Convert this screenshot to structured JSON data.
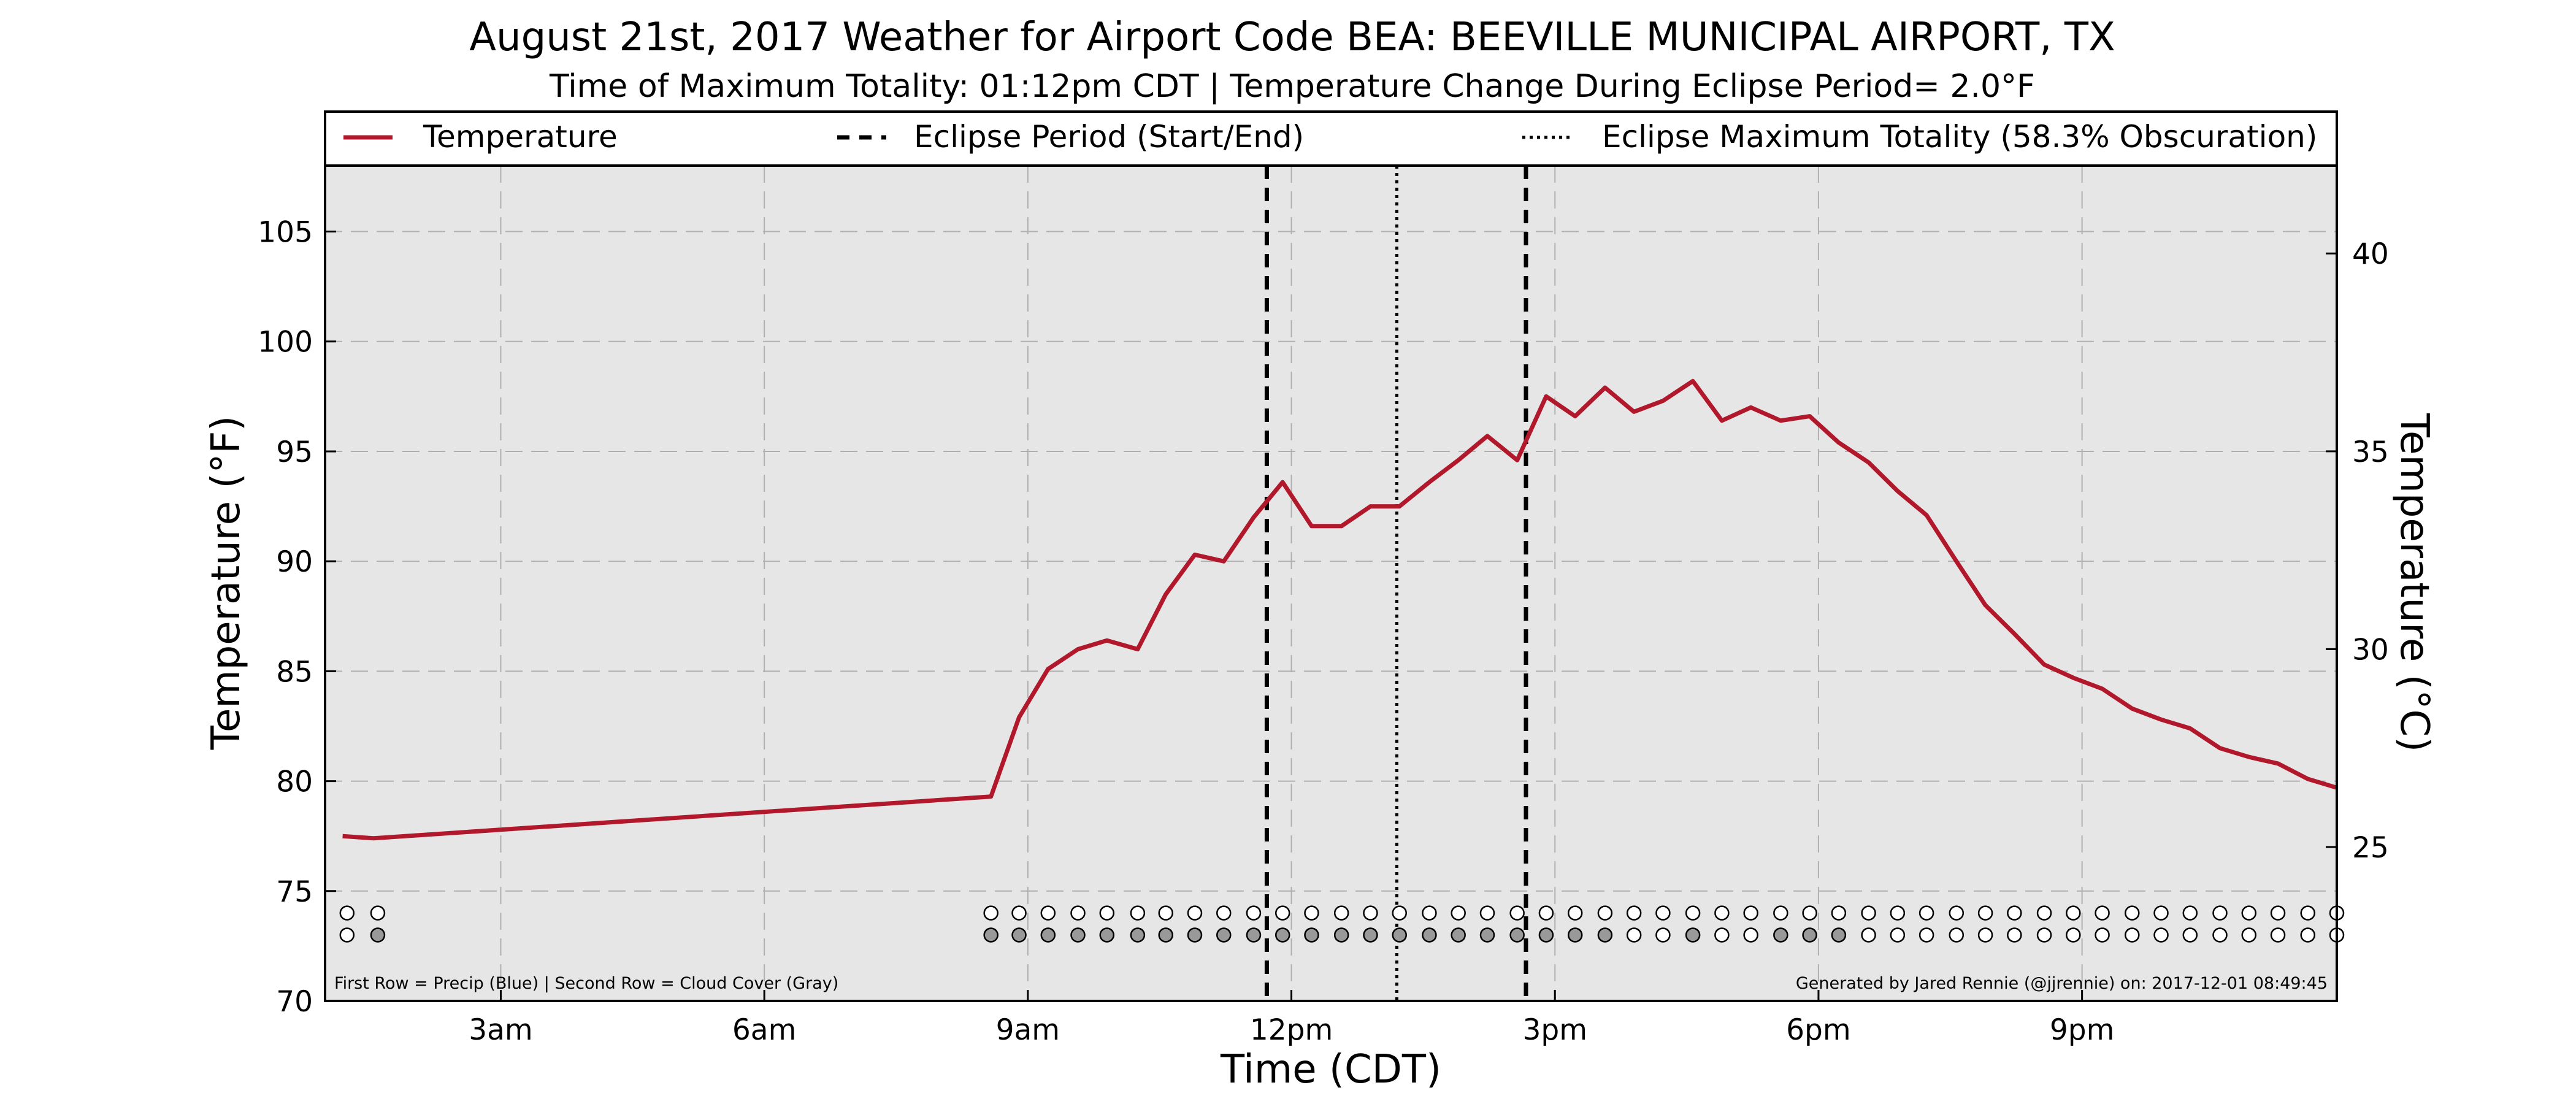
{
  "chart_data": {
    "type": "line",
    "title": "August 21st, 2017 Weather for Airport Code BEA: BEEVILLE MUNICIPAL AIRPORT, TX",
    "subtitle": "Time of Maximum Totality: 01:12pm CDT | Temperature Change During Eclipse Period= 2.0°F",
    "xlabel": "Time (CDT)",
    "ylabel": "Temperature (°F)",
    "ylabel_right": "Temperature (°C)",
    "xlim": [
      1.0,
      23.9
    ],
    "ylim": [
      70,
      108
    ],
    "ylim_right_c": [
      21.11,
      42.22
    ],
    "grid": true,
    "legend_placement": "top",
    "x_ticks": [
      {
        "x": 3,
        "label": "3am"
      },
      {
        "x": 6,
        "label": "6am"
      },
      {
        "x": 9,
        "label": "9am"
      },
      {
        "x": 12,
        "label": "12pm"
      },
      {
        "x": 15,
        "label": "3pm"
      },
      {
        "x": 18,
        "label": "6pm"
      },
      {
        "x": 21,
        "label": "9pm"
      }
    ],
    "y_ticks": [
      70,
      75,
      80,
      85,
      90,
      95,
      100,
      105
    ],
    "y_ticks_right": [
      25,
      30,
      35,
      40
    ],
    "legend": {
      "temperature": "Temperature",
      "eclipse_period": "Eclipse Period (Start/End)",
      "max_totality": "Eclipse Maximum Totality (58.3% Obscuration)"
    },
    "series": [
      {
        "name": "Temperature",
        "color": "#b2182b",
        "x": [
          1.2,
          1.55,
          8.58,
          8.9,
          9.23,
          9.57,
          9.9,
          10.25,
          10.57,
          10.9,
          11.23,
          11.57,
          11.9,
          12.23,
          12.57,
          12.9,
          13.23,
          13.57,
          13.9,
          14.23,
          14.57,
          14.9,
          15.23,
          15.57,
          15.9,
          16.23,
          16.57,
          16.9,
          17.23,
          17.57,
          17.9,
          18.23,
          18.57,
          18.9,
          19.23,
          19.57,
          19.9,
          20.23,
          20.57,
          20.9,
          21.23,
          21.57,
          21.9,
          22.23,
          22.57,
          22.9,
          23.23,
          23.57,
          23.9
        ],
        "y": [
          77.5,
          77.4,
          79.3,
          82.9,
          85.1,
          86.0,
          86.4,
          86.0,
          88.5,
          90.3,
          90.0,
          92.0,
          93.6,
          91.6,
          91.6,
          92.5,
          92.5,
          93.6,
          94.6,
          95.7,
          94.6,
          97.5,
          96.6,
          97.9,
          96.8,
          97.3,
          98.2,
          96.4,
          97.0,
          96.4,
          96.6,
          95.4,
          94.5,
          93.2,
          92.1,
          90.0,
          88.0,
          86.7,
          85.3,
          84.7,
          84.2,
          83.3,
          82.8,
          82.4,
          81.5,
          81.1,
          80.8,
          80.1,
          79.7
        ]
      }
    ],
    "eclipse_start_x": 11.72,
    "eclipse_end_x": 14.67,
    "max_totality_x": 13.2,
    "precip_row": {
      "y": 74.0,
      "x": [
        1.25,
        1.6,
        8.58,
        8.9,
        9.23,
        9.57,
        9.9,
        10.25,
        10.57,
        10.9,
        11.23,
        11.57,
        11.9,
        12.23,
        12.57,
        12.9,
        13.23,
        13.57,
        13.9,
        14.23,
        14.57,
        14.9,
        15.23,
        15.57,
        15.9,
        16.23,
        16.57,
        16.9,
        17.23,
        17.57,
        17.9,
        18.23,
        18.57,
        18.9,
        19.23,
        19.57,
        19.9,
        20.23,
        20.57,
        20.9,
        21.23,
        21.57,
        21.9,
        22.23,
        22.57,
        22.9,
        23.23,
        23.57,
        23.9
      ],
      "filled": [
        0,
        0,
        0,
        0,
        0,
        0,
        0,
        0,
        0,
        0,
        0,
        0,
        0,
        0,
        0,
        0,
        0,
        0,
        0,
        0,
        0,
        0,
        0,
        0,
        0,
        0,
        0,
        0,
        0,
        0,
        0,
        0,
        0,
        0,
        0,
        0,
        0,
        0,
        0,
        0,
        0,
        0,
        0,
        0,
        0,
        0,
        0,
        0,
        0
      ]
    },
    "cloud_row": {
      "y": 73.0,
      "x": [
        1.25,
        1.6,
        8.58,
        8.9,
        9.23,
        9.57,
        9.9,
        10.25,
        10.57,
        10.9,
        11.23,
        11.57,
        11.9,
        12.23,
        12.57,
        12.9,
        13.23,
        13.57,
        13.9,
        14.23,
        14.57,
        14.9,
        15.23,
        15.57,
        15.9,
        16.23,
        16.57,
        16.9,
        17.23,
        17.57,
        17.9,
        18.23,
        18.57,
        18.9,
        19.23,
        19.57,
        19.9,
        20.23,
        20.57,
        20.9,
        21.23,
        21.57,
        21.9,
        22.23,
        22.57,
        22.9,
        23.23,
        23.57,
        23.9
      ],
      "filled": [
        0,
        1,
        1,
        1,
        1,
        1,
        1,
        1,
        1,
        1,
        1,
        1,
        1,
        1,
        1,
        1,
        1,
        1,
        1,
        1,
        1,
        1,
        1,
        1,
        0,
        0,
        1,
        0,
        0,
        1,
        1,
        1,
        0,
        0,
        0,
        0,
        0,
        0,
        0,
        0,
        0,
        0,
        0,
        0,
        0,
        0,
        0,
        0,
        0
      ]
    },
    "notes": {
      "left": "First Row = Precip (Blue) | Second Row = Cloud Cover (Gray)",
      "right": "Generated by Jared Rennie (@jjrennie) on: 2017-12-01 08:49:45"
    },
    "colors": {
      "plot_background": "#e6e6e6",
      "temperature_line": "#b2182b",
      "cloud_fill": "#999999",
      "grid": "#b0b0b0"
    }
  }
}
